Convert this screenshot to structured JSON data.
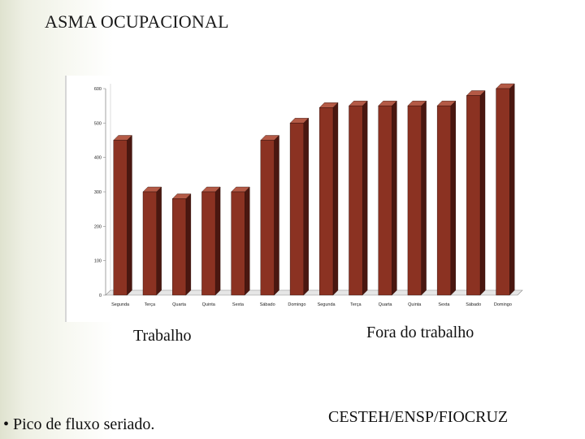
{
  "slide": {
    "title": "ASMA OCUPACIONAL",
    "group_labels": [
      "Trabalho",
      "Fora do trabalho"
    ],
    "footer_left": "• Pico de fluxo seriado.",
    "footer_right": "CESTEH/ENSP/FIOCRUZ"
  },
  "colors": {
    "bar_front": "#8b3222",
    "bar_top": "#b45a46",
    "bar_side": "#4a1710",
    "axis": "#8a8a8a",
    "grid": "#c8c8c8"
  },
  "chart_data": {
    "type": "bar",
    "title": "",
    "xlabel": "",
    "ylabel": "",
    "ylim": [
      0,
      600
    ],
    "yticks": [
      0,
      100,
      200,
      300,
      400,
      500,
      600
    ],
    "categories": [
      "Segunda",
      "Terça",
      "Quarta",
      "Quinta",
      "Sexta",
      "Sábado",
      "Domingo",
      "Segunda",
      "Terça",
      "Quarta",
      "Quinta",
      "Sexta",
      "Sábado",
      "Domingo"
    ],
    "values": [
      450,
      300,
      280,
      300,
      300,
      450,
      500,
      545,
      550,
      550,
      550,
      550,
      580,
      600
    ],
    "style": "3d-bars",
    "grid": false,
    "legend": "none"
  }
}
